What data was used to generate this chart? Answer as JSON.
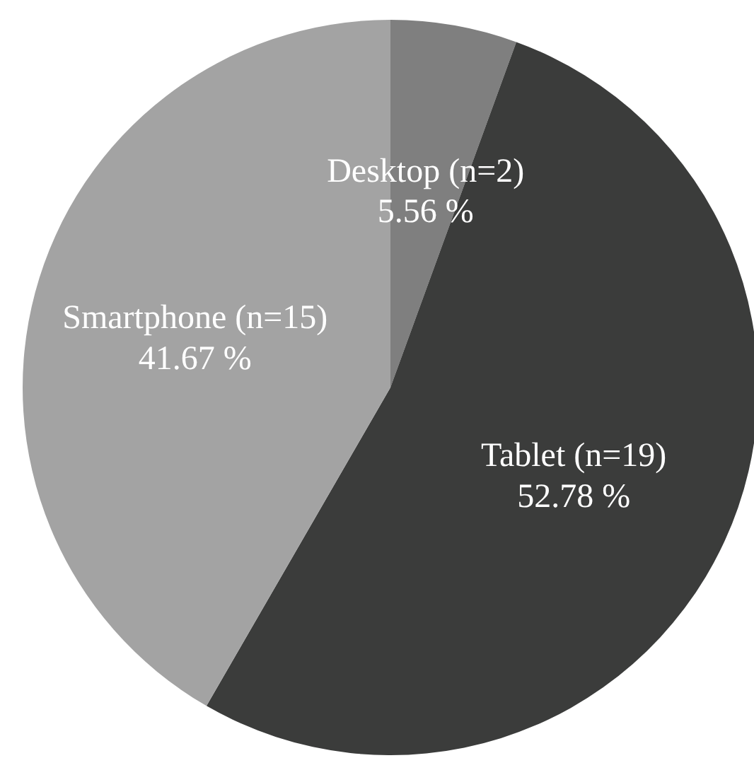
{
  "chart_data": {
    "type": "pie",
    "categories": [
      "Desktop (n=2)",
      "Tablet (n=19)",
      "Smartphone (n=15)"
    ],
    "values": [
      5.56,
      52.78,
      41.67
    ],
    "value_labels": [
      "5.56 %",
      "52.78 %",
      "41.67 %"
    ],
    "colors": [
      "#7f7f7f",
      "#3b3c3b",
      "#a3a3a3"
    ],
    "legend": false
  }
}
